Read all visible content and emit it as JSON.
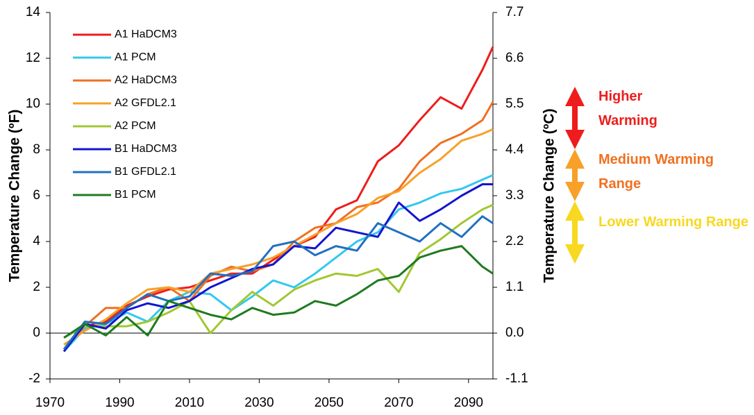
{
  "chart_data": {
    "type": "line",
    "y_label": "Temperature Change (ºF)",
    "y2_label": "Temperature Change (ºC)",
    "x": [
      1974,
      1980,
      1986,
      1992,
      1998,
      2004,
      2010,
      2016,
      2022,
      2028,
      2034,
      2040,
      2046,
      2052,
      2058,
      2064,
      2070,
      2076,
      2082,
      2088,
      2094,
      2097
    ],
    "series": [
      {
        "name": "A1 HaDCM3",
        "color": "#ee1c1c",
        "values": [
          -0.8,
          0.3,
          0.5,
          1.2,
          1.6,
          1.9,
          2.0,
          2.3,
          2.6,
          2.6,
          3.2,
          3.8,
          4.2,
          5.4,
          5.8,
          7.5,
          8.2,
          9.3,
          10.3,
          9.8,
          11.5,
          12.5
        ]
      },
      {
        "name": "A1 PCM",
        "color": "#33c8ee",
        "values": [
          -0.8,
          0.2,
          0.4,
          0.9,
          0.5,
          1.4,
          1.8,
          1.7,
          1.0,
          1.6,
          2.3,
          2.0,
          2.6,
          3.3,
          4.0,
          4.4,
          5.4,
          5.7,
          6.1,
          6.3,
          6.7,
          6.9
        ]
      },
      {
        "name": "A2 HaDCM3",
        "color": "#f07020",
        "values": [
          -0.7,
          0.3,
          1.1,
          1.1,
          1.7,
          2.0,
          1.4,
          2.5,
          2.9,
          2.7,
          3.0,
          4.0,
          4.6,
          4.8,
          5.5,
          5.7,
          6.3,
          7.5,
          8.3,
          8.7,
          9.3,
          10.1
        ]
      },
      {
        "name": "A2 GFDL2.1",
        "color": "#f8a028",
        "values": [
          -0.5,
          0.1,
          0.6,
          1.3,
          1.9,
          2.0,
          1.8,
          2.6,
          2.8,
          3.0,
          3.3,
          3.8,
          4.3,
          4.8,
          5.2,
          5.9,
          6.2,
          7.0,
          7.6,
          8.4,
          8.7,
          8.9
        ]
      },
      {
        "name": "A2 PCM",
        "color": "#a0c830",
        "values": [
          -0.2,
          0.3,
          0.3,
          0.3,
          0.5,
          0.9,
          1.4,
          0.0,
          1.0,
          1.8,
          1.2,
          1.9,
          2.3,
          2.6,
          2.5,
          2.8,
          1.8,
          3.5,
          4.1,
          4.8,
          5.4,
          5.6
        ]
      },
      {
        "name": "B1 HaDCM3",
        "color": "#1414d0",
        "values": [
          -0.8,
          0.4,
          0.2,
          1.0,
          1.3,
          1.1,
          1.4,
          2.0,
          2.4,
          2.8,
          3.0,
          3.8,
          3.7,
          4.6,
          4.4,
          4.2,
          5.7,
          4.9,
          5.4,
          6.0,
          6.5,
          6.5
        ]
      },
      {
        "name": "B1 GFDL2.1",
        "color": "#2070c0",
        "values": [
          -0.7,
          0.5,
          0.4,
          1.1,
          1.7,
          1.4,
          1.6,
          2.6,
          2.5,
          2.7,
          3.8,
          4.0,
          3.4,
          3.8,
          3.6,
          4.8,
          4.4,
          4.0,
          4.8,
          4.2,
          5.1,
          4.8
        ]
      },
      {
        "name": "B1 PCM",
        "color": "#1f7a1f",
        "values": [
          -0.2,
          0.4,
          -0.1,
          0.7,
          -0.1,
          1.4,
          1.1,
          0.8,
          0.6,
          1.1,
          0.8,
          0.9,
          1.4,
          1.2,
          1.7,
          2.3,
          2.5,
          3.3,
          3.6,
          3.8,
          2.9,
          2.6
        ]
      }
    ],
    "xlim": [
      1970,
      2097
    ],
    "xticks": [
      1970,
      1990,
      2010,
      2030,
      2050,
      2070,
      2090
    ],
    "ylim": [
      -2,
      14
    ],
    "yticks": [
      -2,
      0,
      2,
      4,
      6,
      8,
      10,
      12,
      14
    ],
    "y2lim": [
      -1.1,
      7.7
    ],
    "y2ticks": [
      -1.1,
      {
        "value": 0,
        "label": "0.0"
      },
      1.1,
      2.2,
      3.3,
      4.4,
      5.5,
      6.6,
      7.7
    ],
    "grid": false,
    "legend": "upper-left",
    "annotations": [
      {
        "text": "Higher Warming",
        "color": "#ee1c1c"
      },
      {
        "text": "Medium Warming Range",
        "color": "#f07020"
      },
      {
        "text": "Lower Warming Range",
        "color": "#f8d820"
      }
    ]
  }
}
